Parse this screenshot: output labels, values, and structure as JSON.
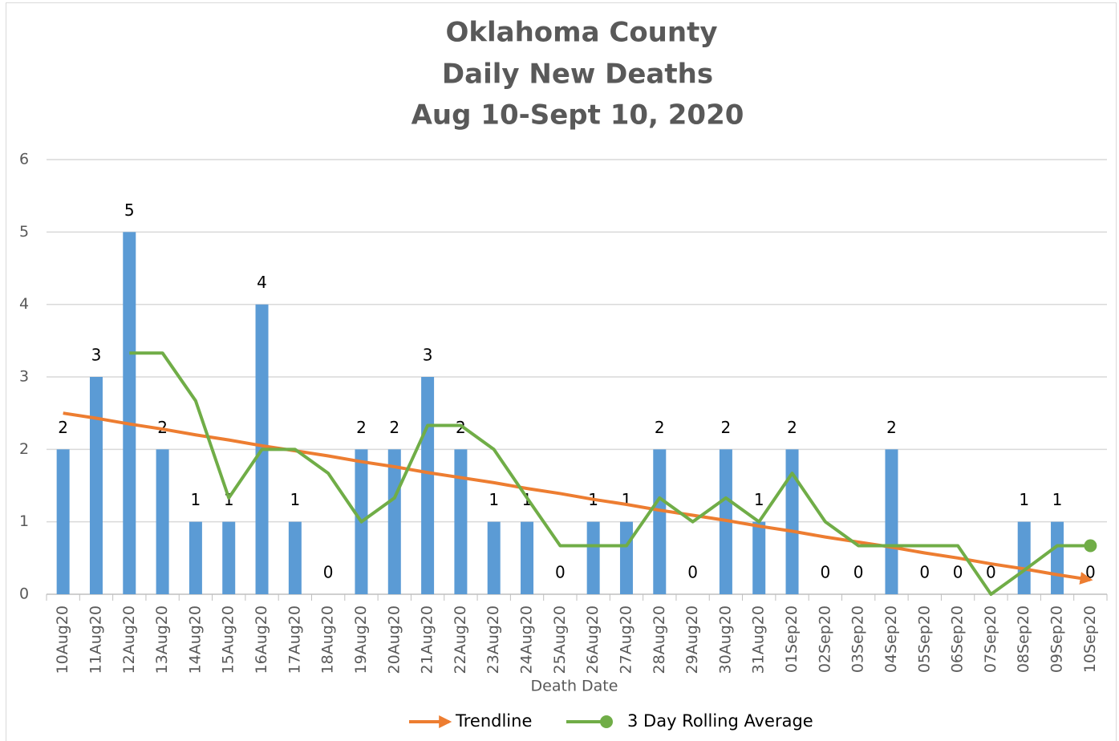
{
  "chart_data": {
    "type": "bar",
    "title": [
      "Oklahoma County",
      "Daily New Deaths",
      "Aug 10-Sept 10, 2020"
    ],
    "x_label": "Death Date",
    "categories": [
      "10Aug20",
      "11Aug20",
      "12Aug20",
      "13Aug20",
      "14Aug20",
      "15Aug20",
      "16Aug20",
      "17Aug20",
      "18Aug20",
      "19Aug20",
      "20Aug20",
      "21Aug20",
      "22Aug20",
      "23Aug20",
      "24Aug20",
      "25Aug20",
      "26Aug20",
      "27Aug20",
      "28Aug20",
      "29Aug20",
      "30Aug20",
      "31Aug20",
      "01Sep20",
      "02Sep20",
      "03Sep20",
      "04Sep20",
      "05Sep20",
      "06Sep20",
      "07Sep20",
      "08Sep20",
      "09Sep20",
      "10Sep20"
    ],
    "values": [
      2,
      3,
      5,
      2,
      1,
      1,
      4,
      1,
      0,
      2,
      2,
      3,
      2,
      1,
      1,
      0,
      1,
      1,
      2,
      0,
      2,
      1,
      2,
      0,
      0,
      2,
      0,
      0,
      0,
      1,
      1,
      0
    ],
    "color": "#5b9bd5",
    "series": [
      {
        "name": "Trendline",
        "type": "line",
        "color": "#ed7d31",
        "values": [
          2.5,
          2.43,
          2.35,
          2.28,
          2.2,
          2.13,
          2.05,
          1.98,
          1.91,
          1.83,
          1.76,
          1.68,
          1.61,
          1.54,
          1.46,
          1.39,
          1.31,
          1.24,
          1.16,
          1.09,
          1.02,
          0.94,
          0.87,
          0.79,
          0.72,
          0.65,
          0.57,
          0.5,
          0.42,
          0.35,
          0.27,
          0.2
        ]
      },
      {
        "name": "3 Day Rolling Average",
        "type": "line",
        "color": "#70ad47",
        "values": [
          null,
          null,
          3.33,
          3.33,
          2.67,
          1.33,
          2,
          2,
          1.67,
          1,
          1.33,
          2.33,
          2.33,
          2,
          1.33,
          0.67,
          0.67,
          0.67,
          1.33,
          1,
          1.33,
          1,
          1.67,
          1,
          0.67,
          0.67,
          0.67,
          0.67,
          0,
          0.33,
          0.67,
          0.67
        ]
      }
    ],
    "ylim": [
      0,
      6
    ],
    "yticks": [
      0,
      1,
      2,
      3,
      4,
      5,
      6
    ],
    "grid": true,
    "legend": "bottom"
  }
}
